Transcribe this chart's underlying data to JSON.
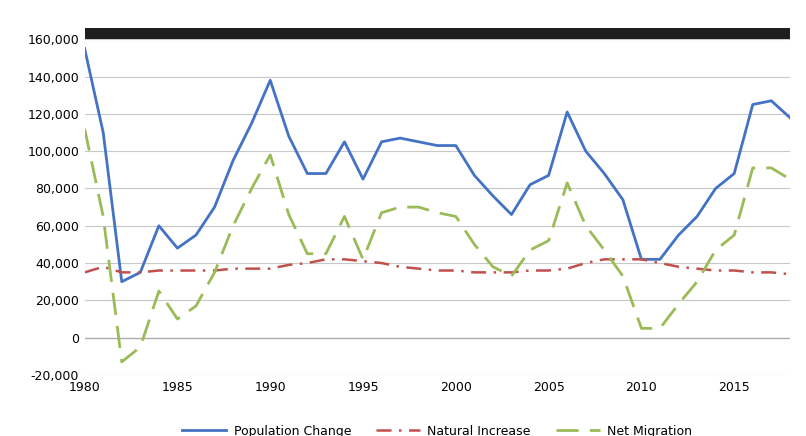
{
  "years": [
    1980,
    1981,
    1982,
    1983,
    1984,
    1985,
    1986,
    1987,
    1988,
    1989,
    1990,
    1991,
    1992,
    1993,
    1994,
    1995,
    1996,
    1997,
    1998,
    1999,
    2000,
    2001,
    2002,
    2003,
    2004,
    2005,
    2006,
    2007,
    2008,
    2009,
    2010,
    2011,
    2012,
    2013,
    2014,
    2015,
    2016,
    2017,
    2018
  ],
  "population_change": [
    155000,
    110000,
    30000,
    35000,
    60000,
    48000,
    55000,
    70000,
    95000,
    115000,
    138000,
    108000,
    88000,
    88000,
    105000,
    85000,
    105000,
    107000,
    105000,
    103000,
    103000,
    87000,
    76000,
    66000,
    82000,
    87000,
    121000,
    100000,
    88000,
    74000,
    42000,
    42000,
    55000,
    65000,
    80000,
    88000,
    125000,
    127000,
    118000
  ],
  "natural_increase": [
    35000,
    38000,
    35000,
    35000,
    36000,
    36000,
    36000,
    36000,
    37000,
    37000,
    37000,
    39000,
    40000,
    42000,
    42000,
    41000,
    40000,
    38000,
    37000,
    36000,
    36000,
    35000,
    35000,
    35000,
    36000,
    36000,
    37000,
    40000,
    42000,
    42000,
    42000,
    40000,
    38000,
    37000,
    36000,
    36000,
    35000,
    35000,
    34000
  ],
  "net_migration": [
    112000,
    65000,
    -13000,
    -5000,
    25000,
    10000,
    17000,
    35000,
    60000,
    80000,
    98000,
    66000,
    45000,
    45000,
    65000,
    42000,
    67000,
    70000,
    70000,
    67000,
    65000,
    50000,
    38000,
    33000,
    47000,
    52000,
    83000,
    60000,
    47000,
    33000,
    5000,
    5000,
    18000,
    30000,
    47000,
    55000,
    91000,
    91000,
    85000
  ],
  "pop_change_color": "#4472C4",
  "nat_increase_color": "#C0504D",
  "net_migration_color": "#9BBB59",
  "xlim": [
    1980,
    2018
  ],
  "ylim": [
    -20000,
    160000
  ],
  "yticks": [
    -20000,
    0,
    20000,
    40000,
    60000,
    80000,
    100000,
    120000,
    140000,
    160000
  ],
  "xticks": [
    1980,
    1985,
    1990,
    1995,
    2000,
    2005,
    2010,
    2015
  ],
  "legend_labels": [
    "Population Change",
    "Natural Increase",
    "Net Migration"
  ],
  "background_color": "#FFFFFF",
  "grid_color": "#C8C8C8",
  "title_bar_color": "#1F1F1F",
  "figsize": [
    8.06,
    4.36
  ],
  "dpi": 100
}
